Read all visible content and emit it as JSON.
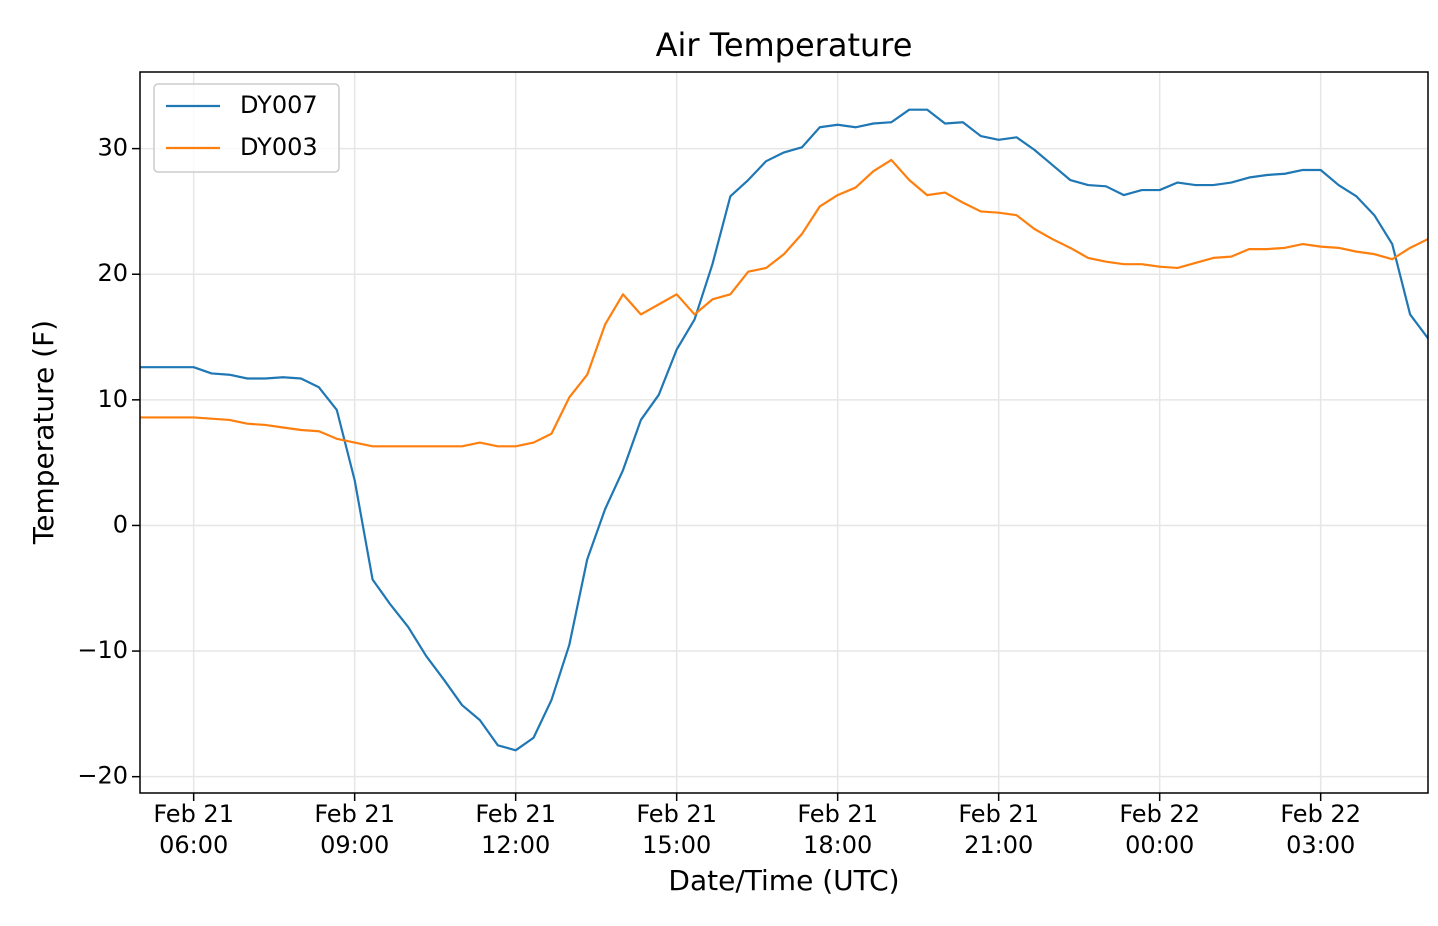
{
  "chart_data": {
    "type": "line",
    "title": "Air Temperature",
    "x_label": "Date/Time (UTC)",
    "y_label": "Temperature (F)",
    "x": [
      "Feb 21 05:00",
      "Feb 21 05:20",
      "Feb 21 05:40",
      "Feb 21 06:00",
      "Feb 21 06:20",
      "Feb 21 06:40",
      "Feb 21 07:00",
      "Feb 21 07:20",
      "Feb 21 07:40",
      "Feb 21 08:00",
      "Feb 21 08:20",
      "Feb 21 08:40",
      "Feb 21 09:00",
      "Feb 21 09:20",
      "Feb 21 09:40",
      "Feb 21 10:00",
      "Feb 21 10:20",
      "Feb 21 10:40",
      "Feb 21 11:00",
      "Feb 21 11:20",
      "Feb 21 11:40",
      "Feb 21 12:00",
      "Feb 21 12:20",
      "Feb 21 12:40",
      "Feb 21 13:00",
      "Feb 21 13:20",
      "Feb 21 13:40",
      "Feb 21 14:00",
      "Feb 21 14:20",
      "Feb 21 14:40",
      "Feb 21 15:00",
      "Feb 21 15:20",
      "Feb 21 15:40",
      "Feb 21 16:00",
      "Feb 21 16:20",
      "Feb 21 16:40",
      "Feb 21 17:00",
      "Feb 21 17:20",
      "Feb 21 17:40",
      "Feb 21 18:00",
      "Feb 21 18:20",
      "Feb 21 18:40",
      "Feb 21 19:00",
      "Feb 21 19:20",
      "Feb 21 19:40",
      "Feb 21 20:00",
      "Feb 21 20:20",
      "Feb 21 20:40",
      "Feb 21 21:00",
      "Feb 21 21:20",
      "Feb 21 21:40",
      "Feb 21 22:00",
      "Feb 21 22:20",
      "Feb 21 22:40",
      "Feb 21 23:00",
      "Feb 21 23:20",
      "Feb 21 23:40",
      "Feb 22 00:00",
      "Feb 22 00:20",
      "Feb 22 00:40",
      "Feb 22 01:00",
      "Feb 22 01:20",
      "Feb 22 01:40",
      "Feb 22 02:00",
      "Feb 22 02:20",
      "Feb 22 02:40",
      "Feb 22 03:00",
      "Feb 22 03:20",
      "Feb 22 03:40",
      "Feb 22 04:00",
      "Feb 22 04:20",
      "Feb 22 04:40",
      "Feb 22 05:00"
    ],
    "series": [
      {
        "name": "DY007",
        "color": "#1f77b4",
        "values": [
          12.6,
          12.6,
          12.6,
          12.6,
          12.1,
          12.0,
          11.7,
          11.7,
          11.8,
          11.7,
          11.0,
          9.2,
          3.6,
          -4.3,
          -6.3,
          -8.1,
          -10.4,
          -12.3,
          -14.3,
          -15.5,
          -17.5,
          -17.9,
          -16.9,
          -13.9,
          -9.5,
          -2.7,
          1.3,
          4.4,
          8.4,
          10.4,
          14.0,
          16.4,
          20.8,
          26.2,
          27.5,
          29.0,
          29.7,
          30.1,
          31.7,
          31.9,
          31.7,
          32.0,
          32.1,
          33.1,
          33.1,
          32.0,
          32.1,
          31.0,
          30.7,
          30.9,
          29.9,
          28.7,
          27.5,
          27.1,
          27.0,
          26.3,
          26.7,
          26.7,
          27.3,
          27.1,
          27.1,
          27.3,
          27.7,
          27.9,
          28.0,
          28.3,
          28.3,
          27.1,
          26.2,
          24.7,
          22.4,
          16.8,
          14.9
        ]
      },
      {
        "name": "DY003",
        "color": "#ff7f0e",
        "values": [
          8.6,
          8.6,
          8.6,
          8.6,
          8.5,
          8.4,
          8.1,
          8.0,
          7.8,
          7.6,
          7.5,
          6.9,
          6.6,
          6.3,
          6.3,
          6.3,
          6.3,
          6.3,
          6.3,
          6.6,
          6.3,
          6.3,
          6.6,
          7.3,
          10.2,
          12.0,
          16.0,
          18.4,
          16.8,
          17.6,
          18.4,
          16.8,
          18.0,
          18.4,
          20.2,
          20.5,
          21.6,
          23.2,
          25.4,
          26.3,
          26.9,
          28.2,
          29.1,
          27.5,
          26.3,
          26.5,
          25.7,
          25.0,
          24.9,
          24.7,
          23.6,
          22.8,
          22.1,
          21.3,
          21.0,
          20.8,
          20.8,
          20.6,
          20.5,
          20.9,
          21.3,
          21.4,
          22.0,
          22.0,
          22.1,
          22.4,
          22.2,
          22.1,
          21.8,
          21.6,
          21.2,
          22.1,
          22.8
        ]
      }
    ],
    "xlim": [
      "Feb 21 05:00",
      "Feb 22 05:00"
    ],
    "xticks": [
      {
        "value": "Feb 21 06:00",
        "label": "Feb 21\n06:00"
      },
      {
        "value": "Feb 21 09:00",
        "label": "Feb 21\n09:00"
      },
      {
        "value": "Feb 21 12:00",
        "label": "Feb 21\n12:00"
      },
      {
        "value": "Feb 21 15:00",
        "label": "Feb 21\n15:00"
      },
      {
        "value": "Feb 21 18:00",
        "label": "Feb 21\n18:00"
      },
      {
        "value": "Feb 21 21:00",
        "label": "Feb 21\n21:00"
      },
      {
        "value": "Feb 22 00:00",
        "label": "Feb 22\n00:00"
      },
      {
        "value": "Feb 22 03:00",
        "label": "Feb 22\n03:00"
      }
    ],
    "ylim": [
      -21.3,
      36.1
    ],
    "yticks": [
      {
        "value": -20,
        "label": "−20"
      },
      {
        "value": -10,
        "label": "−10"
      },
      0,
      10,
      20,
      30
    ],
    "grid": true,
    "legend": "upper left"
  }
}
